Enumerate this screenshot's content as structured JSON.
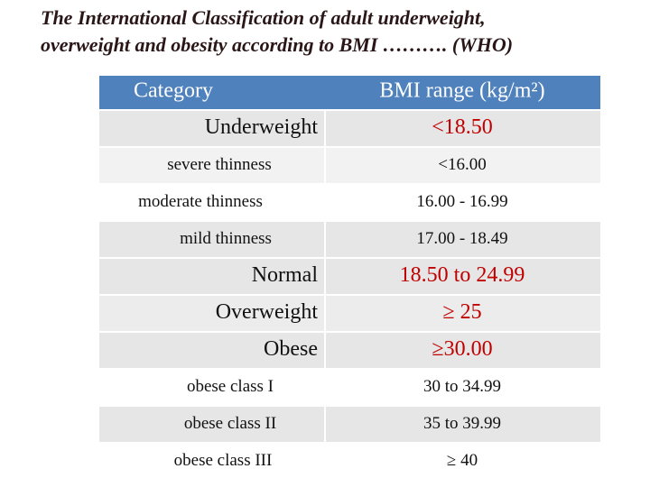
{
  "header": {
    "title_lines": [
      "The International Classification of adult underweight,",
      "overweight and obesity according to BMI ………. (WHO)"
    ]
  },
  "table": {
    "columns": [
      "Category",
      "BMI range (kg/m²)"
    ],
    "rows": [
      [
        "Underweight",
        "<18.50"
      ],
      [
        "severe thinness",
        "<16.00"
      ],
      [
        "moderate thinness",
        "16.00 - 16.99"
      ],
      [
        "mild thinness",
        "17.00 - 18.49"
      ],
      [
        "Normal",
        "18.50 to 24.99"
      ],
      [
        "Overweight",
        "≥ 25"
      ],
      [
        "Obese",
        "≥30.00"
      ],
      [
        "obese class I",
        "30 to 34.99"
      ],
      [
        "obese class II",
        "35 to 39.99"
      ],
      [
        "obese class III",
        "≥ 40"
      ]
    ]
  }
}
